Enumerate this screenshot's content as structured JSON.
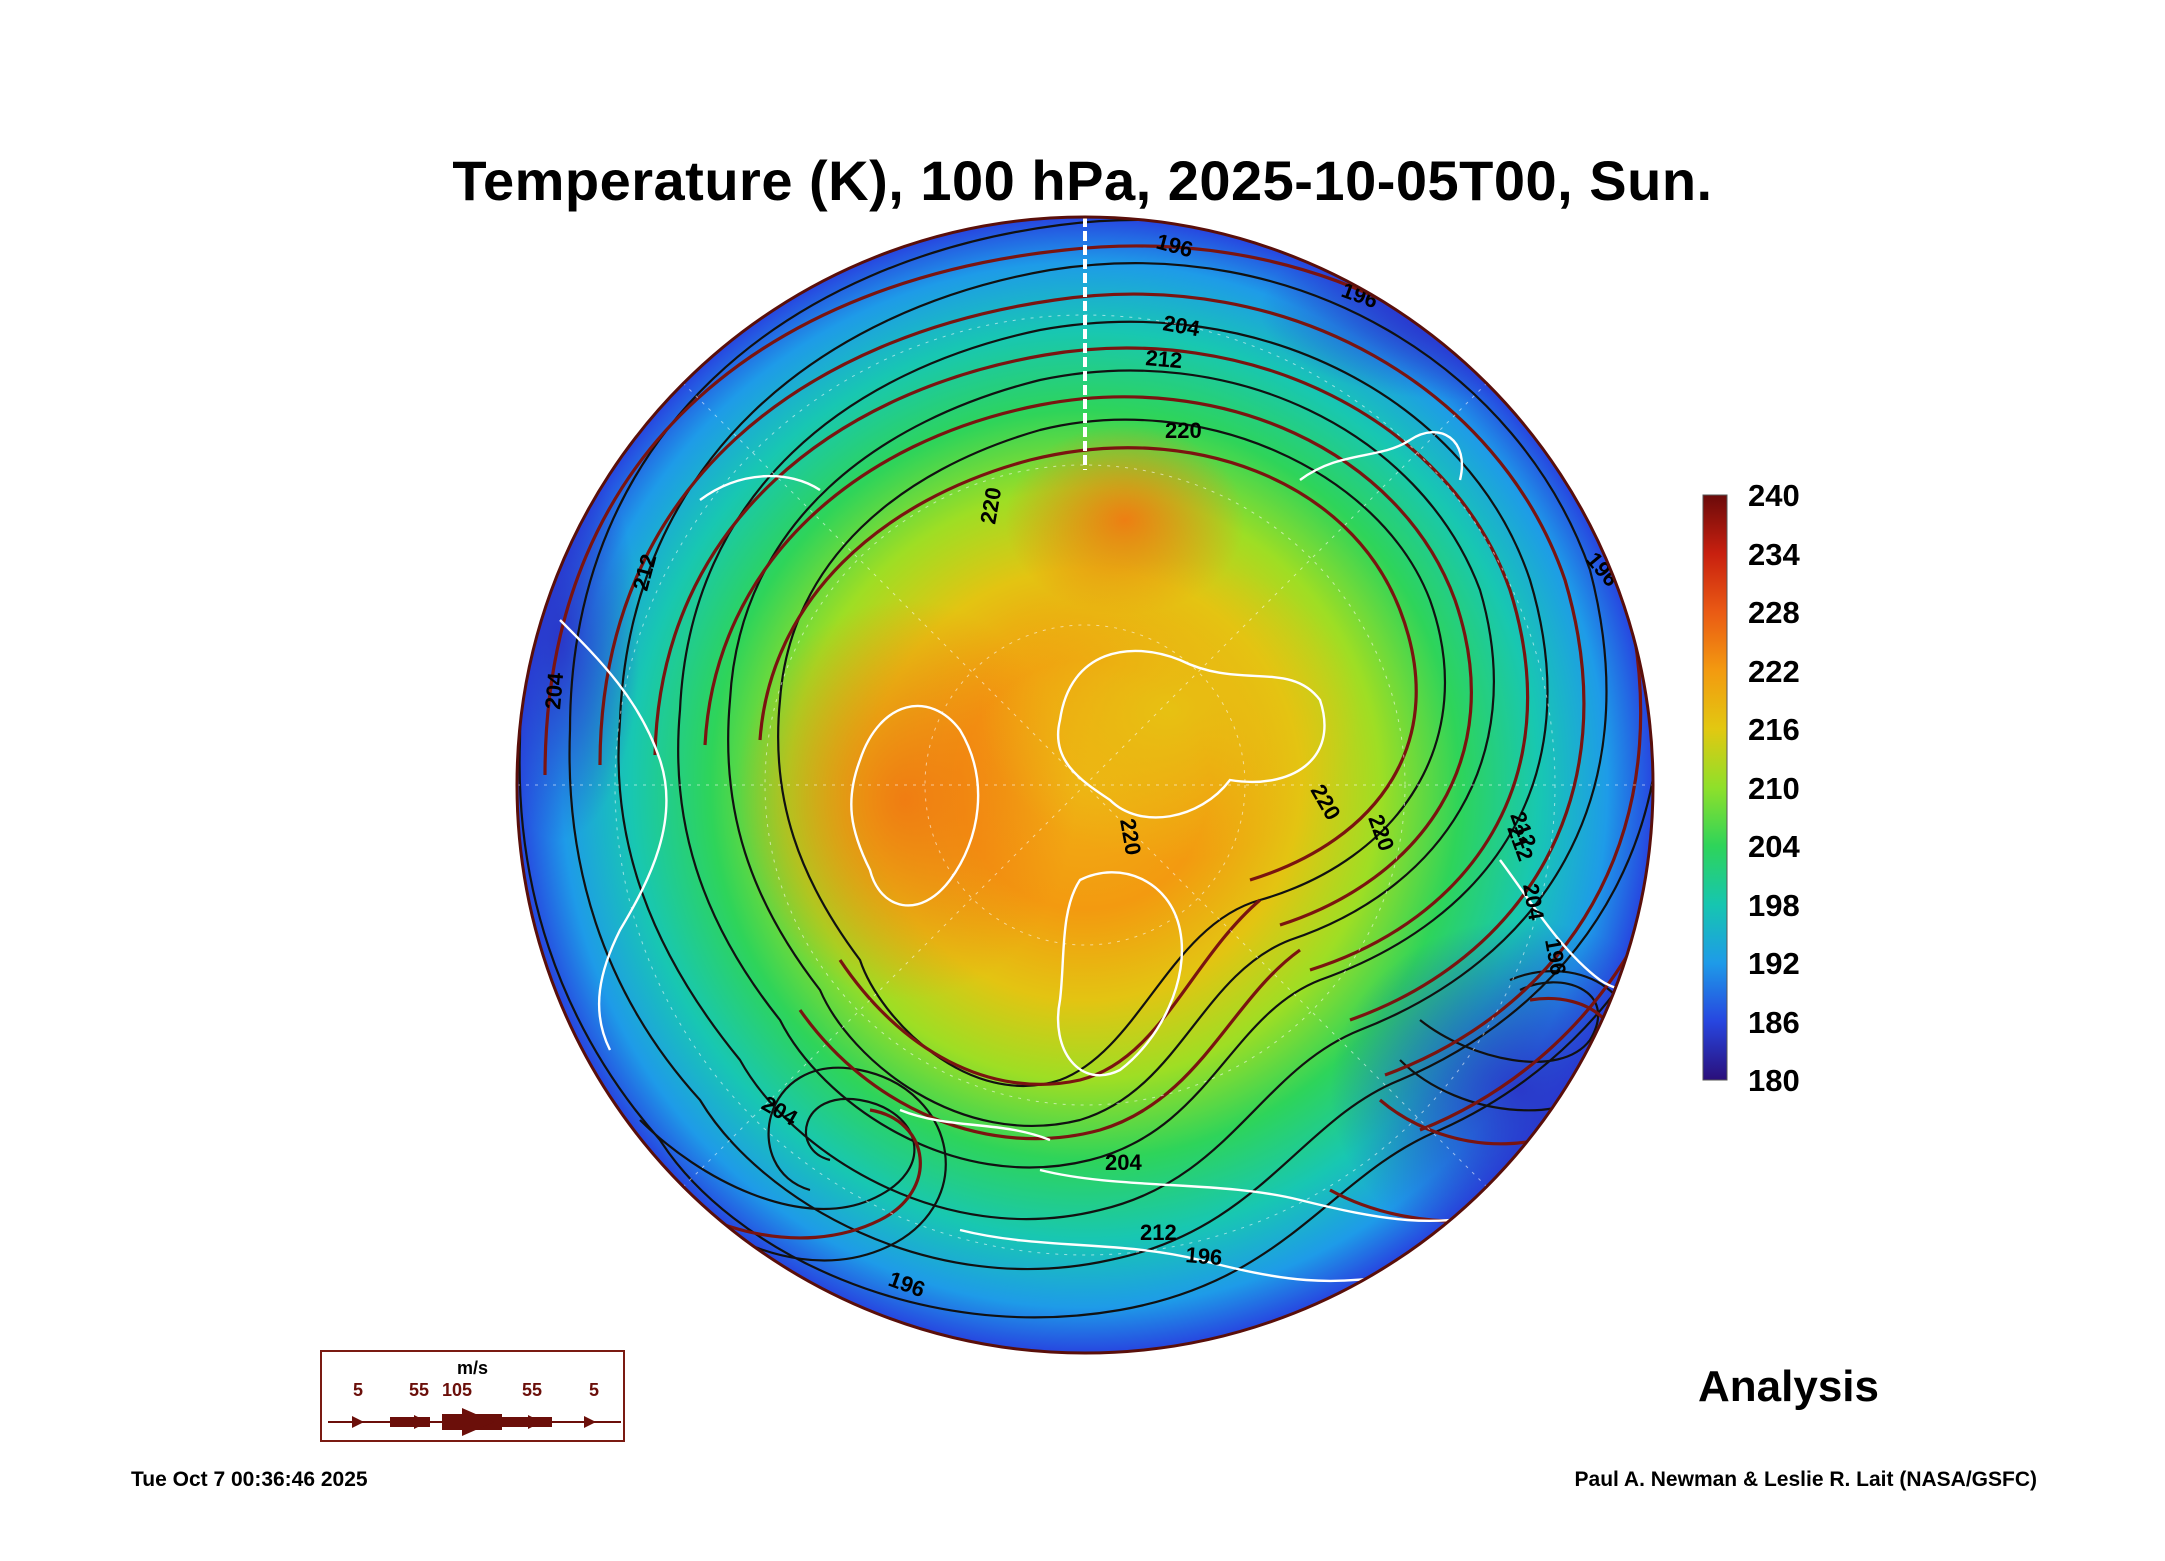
{
  "title": "Temperature (K), 100 hPa, 2025-10-05T00, Sun.",
  "colorbar": {
    "ticks": [
      "240",
      "234",
      "228",
      "222",
      "216",
      "210",
      "204",
      "198",
      "192",
      "186",
      "180"
    ],
    "range": [
      180,
      240
    ],
    "colors": [
      "#2a0f7a",
      "#2746e0",
      "#1e9be8",
      "#16c6b0",
      "#2ed45a",
      "#8fe02a",
      "#e2c811",
      "#f39a10",
      "#ea5a14",
      "#c8200f",
      "#6b0a0a"
    ]
  },
  "map": {
    "projection": "north-polar-stereographic",
    "contour_labels": [
      "196",
      "196",
      "204",
      "212",
      "220",
      "220",
      "220",
      "220",
      "220",
      "212",
      "204",
      "196",
      "212",
      "204",
      "212",
      "196",
      "204",
      "196",
      "204",
      "212",
      "196"
    ]
  },
  "wind_legend": {
    "unit": "m/s",
    "speeds": [
      "5",
      "55",
      "105",
      "55",
      "5"
    ]
  },
  "analysis_label": "Analysis",
  "timestamp": "Tue Oct  7 00:36:46 2025",
  "credit": "Paul A. Newman & Leslie R. Lait (NASA/GSFC)"
}
